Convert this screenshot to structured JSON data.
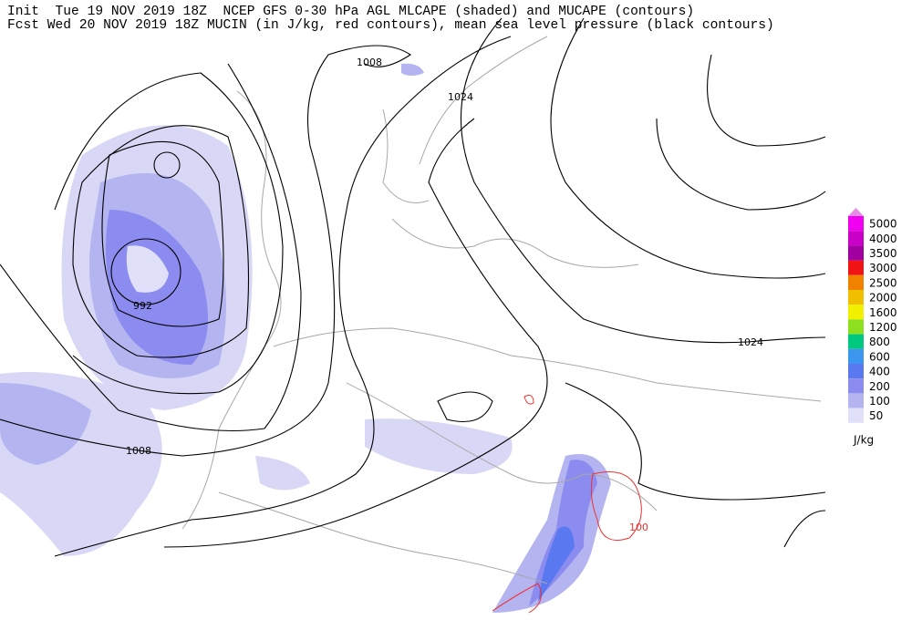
{
  "header": {
    "line1": "Init  Tue 19 NOV 2019 18Z  NCEP GFS 0-30 hPa AGL MLCAPE (shaded) and MUCAPE (contours)",
    "line2": "Fcst Wed 20 NOV 2019 18Z MUCIN (in J/kg, red contours), mean sea level pressure (black contours)"
  },
  "contour_labels": [
    1008,
    1024,
    992,
    1008,
    1024,
    100
  ],
  "legend": {
    "unit": "J/kg",
    "levels": [
      {
        "label": 5000,
        "color": "#f000f0"
      },
      {
        "label": 4000,
        "color": "#c800c8"
      },
      {
        "label": 3500,
        "color": "#a000a0"
      },
      {
        "label": 3000,
        "color": "#f01414"
      },
      {
        "label": 2500,
        "color": "#f08200"
      },
      {
        "label": 2000,
        "color": "#f0c000"
      },
      {
        "label": 1600,
        "color": "#f0f000"
      },
      {
        "label": 1200,
        "color": "#8ce020"
      },
      {
        "label": 800,
        "color": "#00c880"
      },
      {
        "label": 600,
        "color": "#3c96f0"
      },
      {
        "label": 400,
        "color": "#5a78f0"
      },
      {
        "label": 200,
        "color": "#8c8cf0"
      },
      {
        "label": 100,
        "color": "#b4b4f0"
      },
      {
        "label": 50,
        "color": "#e0e0f8"
      }
    ]
  }
}
